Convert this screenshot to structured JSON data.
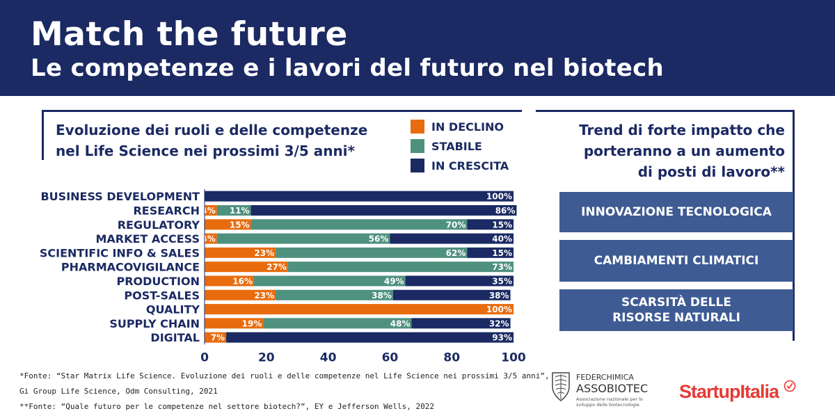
{
  "header": {
    "title": "Match the future",
    "subtitle": "Le competenze e i lavori del futuro nel biotech"
  },
  "chart_title_lines": [
    "Evoluzione dei ruoli e delle competenze",
    "nel Life Science nei prossimi 3/5 anni*"
  ],
  "legend": [
    {
      "label": "IN DECLINO",
      "color": "#e86c0e"
    },
    {
      "label": "STABILE",
      "color": "#4e917e"
    },
    {
      "label": "IN CRESCITA",
      "color": "#1b2a63"
    }
  ],
  "right_panel": {
    "title_lines": [
      "Trend di forte impatto che",
      "porteranno a un aumento",
      "di posti di lavoro**"
    ],
    "trends": [
      {
        "lines": [
          "INNOVAZIONE TECNOLOGICA"
        ]
      },
      {
        "lines": [
          "CAMBIAMENTI CLIMATICI"
        ]
      },
      {
        "lines": [
          "SCARSITÀ DELLE",
          "RISORSE NATURALI"
        ]
      }
    ]
  },
  "chart_data": {
    "type": "bar",
    "orientation": "horizontal",
    "stacked": true,
    "categories": [
      "BUSINESS DEVELOPMENT",
      "RESEARCH",
      "REGULATORY",
      "MARKET ACCESS",
      "SCIENTIFIC INFO & SALES",
      "PHARMACOVIGILANCE",
      "PRODUCTION",
      "POST-SALES",
      "QUALITY",
      "SUPPLY CHAIN",
      "DIGITAL"
    ],
    "series": [
      {
        "name": "IN DECLINO",
        "color": "#e86c0e",
        "values": [
          0,
          4,
          15,
          4,
          23,
          27,
          16,
          23,
          100,
          19,
          7
        ]
      },
      {
        "name": "STABILE",
        "color": "#4e917e",
        "values": [
          0,
          11,
          70,
          56,
          62,
          73,
          49,
          38,
          0,
          48,
          0
        ]
      },
      {
        "name": "IN CRESCITA",
        "color": "#1b2a63",
        "values": [
          100,
          86,
          15,
          40,
          15,
          0,
          35,
          38,
          0,
          32,
          93
        ]
      }
    ],
    "xlim": [
      0,
      100
    ],
    "xticks": [
      0,
      20,
      40,
      60,
      80,
      100
    ],
    "legend_position": "top-right"
  },
  "footnotes": [
    "*Fonte: “Star Matrix Life Science. Evoluzione dei ruoli e delle competenze nel Life Science nei prossimi 3/5 anni”,",
    "Gi Group Life Science, Odm Consulting, 2021",
    "**Fonte: “Quale futuro per le competenze nel settore biotech?”, EY e Jefferson Wells, 2022"
  ],
  "logos": {
    "federchimica": {
      "name": "FEDERCHIMICA",
      "brand": "ASSOBIOTEC",
      "tagline": "Associazione nazionale per lo sviluppo delle biotecnologie"
    },
    "startupitalia": "StartupItalia"
  }
}
